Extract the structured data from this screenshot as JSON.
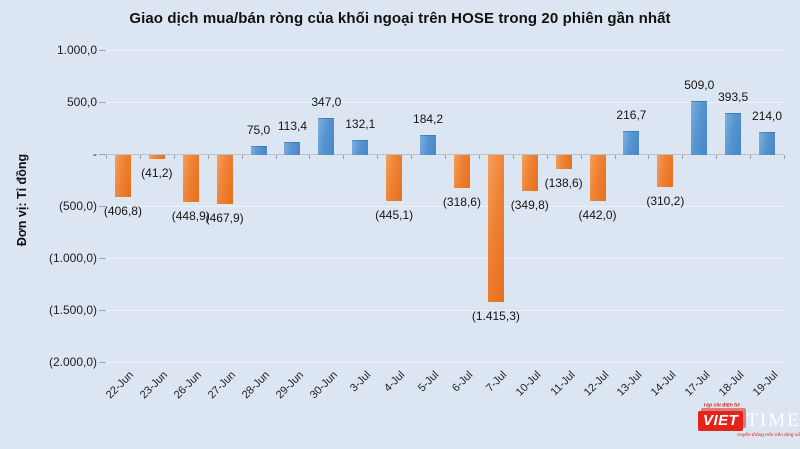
{
  "title": "Giao dịch mua/bán ròng của khối ngoại trên HOSE trong 20 phiên gần nhất",
  "y_axis_title": "Đơn vị: Tỉ đồng",
  "chart_data": {
    "type": "bar",
    "title": "Giao dịch mua/bán ròng của khối ngoại trên HOSE trong 20 phiên gần nhất",
    "xlabel": "",
    "ylabel": "Đơn vị: Tỉ đồng",
    "unit": "Tỉ đồng",
    "categories": [
      "22-Jun",
      "23-Jun",
      "26-Jun",
      "27-Jun",
      "28-Jun",
      "29-Jun",
      "30-Jun",
      "3-Jul",
      "4-Jul",
      "5-Jul",
      "6-Jul",
      "7-Jul",
      "10-Jul",
      "11-Jul",
      "12-Jul",
      "13-Jul",
      "14-Jul",
      "17-Jul",
      "18-Jul",
      "19-Jul"
    ],
    "values": [
      -406.8,
      -41.2,
      -448.9,
      -467.9,
      75.0,
      113.4,
      347.0,
      132.1,
      -445.1,
      184.2,
      -318.6,
      -1415.3,
      -349.8,
      -138.6,
      -442.0,
      216.7,
      -310.2,
      509.0,
      393.5,
      214.0
    ],
    "value_labels": [
      "(406,8)",
      "(41,2)",
      "(448,9)",
      "(467,9)",
      "75,0",
      "113,4",
      "347,0",
      "132,1",
      "(445,1)",
      "184,2",
      "(318,6)",
      "(1.415,3)",
      "(349,8)",
      "(138,6)",
      "(442,0)",
      "216,7",
      "(310,2)",
      "509,0",
      "393,5",
      "214,0"
    ],
    "y_ticks": {
      "labels": [
        "1.000,0",
        "500,0",
        "-",
        "(500,0)",
        "(1.000,0)",
        "(1.500,0)",
        "(2.000,0)"
      ],
      "values": [
        1000,
        500,
        0,
        -500,
        -1000,
        -1500,
        -2000
      ]
    },
    "ylim": [
      -2000,
      1000
    ],
    "grid": true,
    "legend": false,
    "colors": {
      "positive": "#5b9bd5",
      "negative": "#ed7d31",
      "background": "#dce6f2",
      "gridline": "#edf2f8",
      "axis_line": "#b9c2cc"
    }
  },
  "watermark": {
    "top_tagline": "Tạp chí điện tử",
    "brand_left": "VIET",
    "brand_right": "TIMES",
    "bottom_tagline": "truyền thông trên nền tảng số",
    "brand_color": "#e2231a"
  }
}
